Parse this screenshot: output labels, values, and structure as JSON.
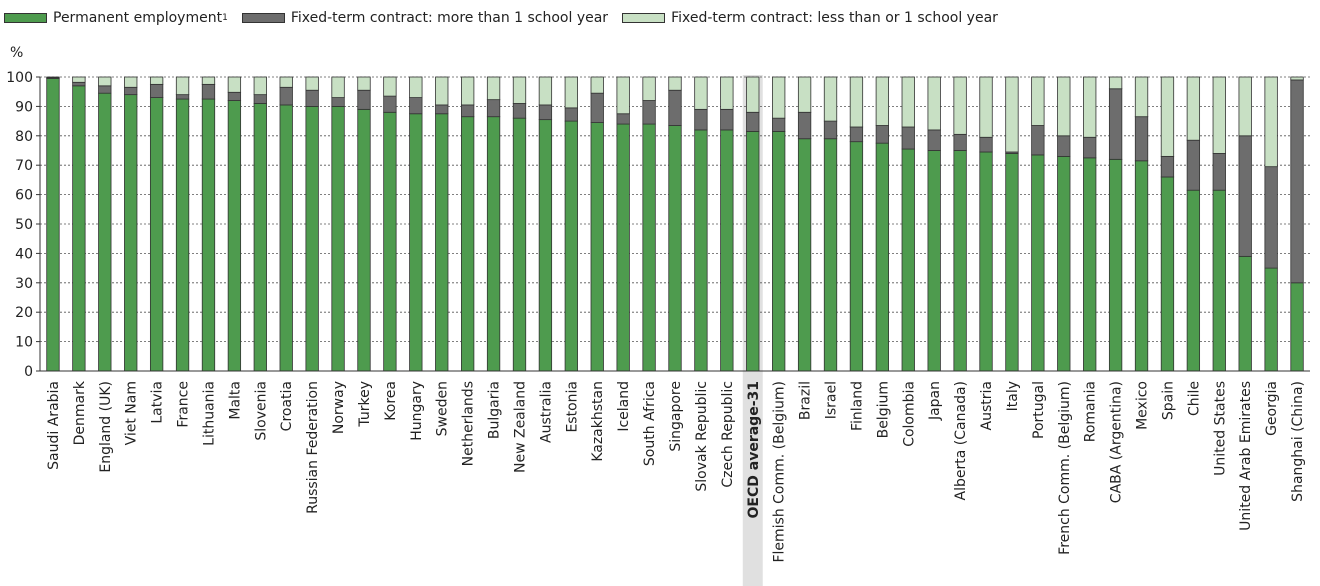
{
  "legend": [
    {
      "label": "Permanent employment",
      "sup": "1",
      "color": "#4e9b4e"
    },
    {
      "label": "Fixed-term contract: more than 1 school year",
      "sup": "",
      "color": "#6d6d6d"
    },
    {
      "label": "Fixed-term contract: less than or 1 school year",
      "sup": "",
      "color": "#c8e0c4"
    }
  ],
  "colors": {
    "permanent": "#4e9b4e",
    "more_than_1": "#6d6d6d",
    "less_than_1": "#c8e0c4",
    "highlight": "#e0e0e0"
  },
  "chart_data": {
    "type": "bar",
    "stacked": true,
    "ylabel": "%",
    "ylim": [
      0,
      100
    ],
    "yticks": [
      0,
      10,
      20,
      30,
      40,
      50,
      60,
      70,
      80,
      90,
      100
    ],
    "grid": true,
    "legend_position": "top-left",
    "highlighted_category": "OECD average-31",
    "categories": [
      "Saudi Arabia",
      "Denmark",
      "England (UK)",
      "Viet Nam",
      "Latvia",
      "France",
      "Lithuania",
      "Malta",
      "Slovenia",
      "Croatia",
      "Russian Federation",
      "Norway",
      "Turkey",
      "Korea",
      "Hungary",
      "Sweden",
      "Netherlands",
      "Bulgaria",
      "New Zealand",
      "Australia",
      "Estonia",
      "Kazakhstan",
      "Iceland",
      "South Africa",
      "Singapore",
      "Slovak Republic",
      "Czech Republic",
      "OECD average-31",
      "Flemish Comm. (Belgium)",
      "Brazil",
      "Israel",
      "Finland",
      "Belgium",
      "Colombia",
      "Japan",
      "Alberta (Canada)",
      "Austria",
      "Italy",
      "Portugal",
      "French Comm. (Belgium)",
      "Romania",
      "CABA (Argentina)",
      "Mexico",
      "Spain",
      "Chile",
      "United States",
      "United Arab Emirates",
      "Georgia",
      "Shanghai (China)"
    ],
    "series": [
      {
        "name": "Permanent employment",
        "values": [
          99.5,
          97,
          94.5,
          94,
          93,
          92.5,
          92.5,
          92,
          91,
          90.5,
          90,
          90,
          89,
          88,
          87.5,
          87.5,
          86.5,
          86.5,
          86,
          85.5,
          85,
          84.5,
          84,
          84,
          83.5,
          82,
          82,
          81.5,
          81.5,
          79,
          79,
          78,
          77.5,
          75.5,
          75,
          75,
          74.5,
          74,
          73.5,
          73,
          72.5,
          72,
          71.5,
          66,
          61.5,
          61.5,
          39,
          35,
          30
        ]
      },
      {
        "name": "Fixed-term contract: more than 1 school year",
        "values": [
          0.3,
          1.2,
          2.5,
          2.5,
          4.5,
          1.5,
          5,
          2.8,
          3,
          6,
          5.5,
          3,
          6.5,
          5.5,
          5.5,
          3,
          4,
          5.8,
          5,
          5,
          4.5,
          10,
          3.5,
          8,
          12,
          7,
          7,
          6.5,
          4.5,
          9,
          6,
          5,
          6,
          7.5,
          7,
          5.5,
          5,
          0.5,
          10,
          7,
          7,
          24,
          15,
          7,
          17,
          12.5,
          41,
          34.5,
          69
        ]
      },
      {
        "name": "Fixed-term contract: less than or 1 school year",
        "values": [
          0.2,
          1.8,
          3,
          3.5,
          2.5,
          6,
          2.5,
          5.2,
          6,
          3.5,
          4.5,
          7,
          4.5,
          6.5,
          7,
          9.5,
          9.5,
          7.7,
          9,
          9.5,
          10.5,
          5.5,
          12.5,
          8,
          4.5,
          11,
          11,
          12,
          14,
          12,
          15,
          17,
          16.5,
          17,
          18,
          19.5,
          20.5,
          25.5,
          16.5,
          20,
          20.5,
          4,
          13.5,
          27,
          21.5,
          26,
          20,
          30.5,
          1
        ]
      }
    ]
  }
}
